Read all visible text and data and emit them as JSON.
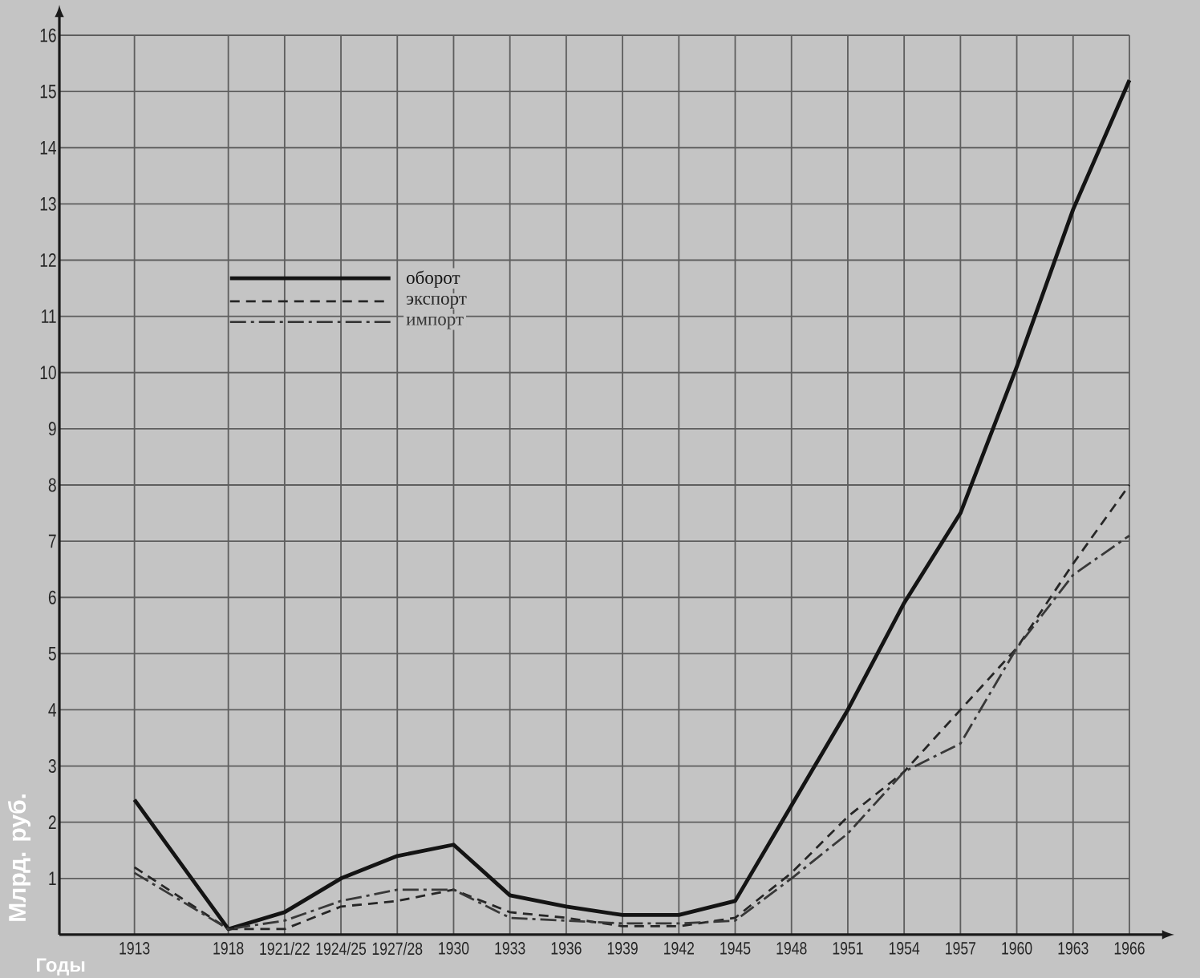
{
  "chart_data": {
    "type": "line",
    "xlabel": "Годы",
    "ylabel": "Млрд. руб.",
    "x": [
      1913,
      1918,
      1921,
      1924,
      1927,
      1930,
      1933,
      1936,
      1939,
      1942,
      1945,
      1948,
      1951,
      1954,
      1957,
      1960,
      1963,
      1966
    ],
    "xlim": [
      1909,
      1966
    ],
    "xticks": [
      1913,
      1918,
      {
        "value": 1921,
        "label": "1921/22"
      },
      {
        "value": 1924,
        "label": "1924/25"
      },
      {
        "value": 1927,
        "label": "1927/28"
      },
      1930,
      1933,
      1936,
      1939,
      1942,
      1945,
      1948,
      1951,
      1954,
      1957,
      1960,
      1963,
      1966
    ],
    "ylim": [
      0,
      16
    ],
    "yticks": [
      1,
      2,
      3,
      4,
      5,
      6,
      7,
      8,
      9,
      10,
      11,
      12,
      13,
      14,
      15,
      16
    ],
    "grid": true,
    "legend": "top left",
    "series": [
      {
        "name": "оборот",
        "color": "#141414",
        "line_style": "solid",
        "values": [
          2.4,
          0.1,
          0.4,
          1.0,
          1.4,
          1.6,
          0.7,
          0.5,
          0.35,
          0.35,
          0.6,
          2.3,
          4.0,
          5.9,
          7.5,
          10.1,
          12.9,
          15.2
        ]
      },
      {
        "name": "экспорт",
        "color": "#262626",
        "line_style": "dashed",
        "values": [
          1.2,
          0.1,
          0.1,
          0.5,
          0.6,
          0.8,
          0.4,
          0.3,
          0.15,
          0.15,
          0.3,
          1.1,
          2.1,
          2.9,
          4.0,
          5.1,
          6.6,
          8.0
        ]
      },
      {
        "name": "импорт",
        "color": "#383838",
        "line_style": "dashdot",
        "values": [
          1.1,
          0.1,
          0.25,
          0.6,
          0.8,
          0.8,
          0.3,
          0.25,
          0.2,
          0.2,
          0.25,
          1.0,
          1.8,
          2.9,
          3.4,
          5.1,
          6.4,
          7.1
        ]
      }
    ]
  }
}
